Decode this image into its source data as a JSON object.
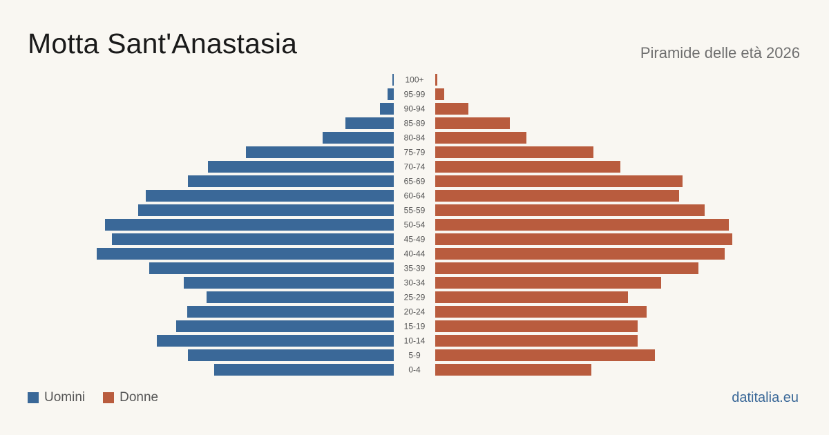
{
  "header": {
    "title": "Motta Sant'Anastasia",
    "subtitle": "Piramide delle età 2026"
  },
  "legend": {
    "male_label": "Uomini",
    "female_label": "Donne"
  },
  "brand": "datitalia.eu",
  "colors": {
    "male": "#3a6898",
    "female": "#b95c3e",
    "background": "#f9f7f2"
  },
  "chart_data": {
    "type": "bar",
    "orientation": "horizontal-pyramid",
    "categories": [
      "100+",
      "95-99",
      "90-94",
      "85-89",
      "80-84",
      "75-79",
      "70-74",
      "65-69",
      "60-64",
      "55-59",
      "50-54",
      "45-49",
      "40-44",
      "35-39",
      "30-34",
      "25-29",
      "20-24",
      "15-19",
      "10-14",
      "5-9",
      "0-4"
    ],
    "series": [
      {
        "name": "Uomini",
        "side": "left",
        "values": [
          2,
          9,
          20,
          70,
          103,
          214,
          269,
          298,
          359,
          370,
          418,
          408,
          430,
          354,
          304,
          271,
          299,
          315,
          343,
          298,
          260
        ]
      },
      {
        "name": "Donne",
        "side": "right",
        "values": [
          3,
          13,
          48,
          108,
          132,
          229,
          268,
          358,
          353,
          390,
          425,
          430,
          419,
          381,
          327,
          279,
          306,
          293,
          293,
          318,
          226
        ]
      }
    ],
    "grid": false,
    "legend_position": "bottom-left"
  }
}
